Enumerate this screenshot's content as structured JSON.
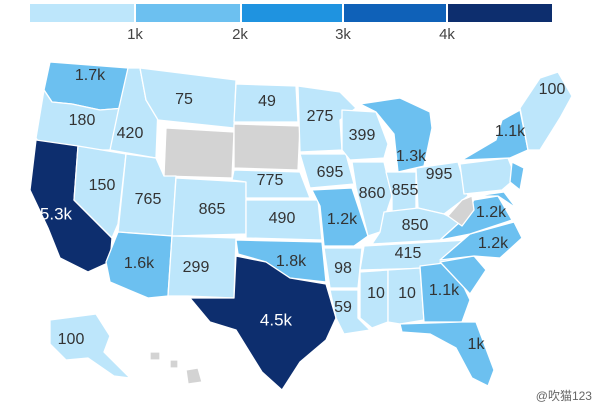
{
  "legend": {
    "ticks": [
      "1k",
      "2k",
      "3k",
      "4k"
    ],
    "colors": [
      "#bde6fb",
      "#6cc0f0",
      "#1f93e0",
      "#0f61b8",
      "#0d2e6e"
    ]
  },
  "no_data_color": "#d3d3d3",
  "states": [
    {
      "id": "WA",
      "label": "1.7k",
      "value": 1700
    },
    {
      "id": "OR",
      "label": "180",
      "value": 180
    },
    {
      "id": "CA",
      "label": "5.3k",
      "value": 5300
    },
    {
      "id": "ID",
      "label": "420",
      "value": 420
    },
    {
      "id": "NV",
      "label": "150",
      "value": 150
    },
    {
      "id": "MT",
      "label": "75",
      "value": 75
    },
    {
      "id": "WY",
      "label": "",
      "value": null
    },
    {
      "id": "UT",
      "label": "765",
      "value": 765
    },
    {
      "id": "AZ",
      "label": "1.6k",
      "value": 1600
    },
    {
      "id": "CO",
      "label": "865",
      "value": 865
    },
    {
      "id": "NM",
      "label": "299",
      "value": 299
    },
    {
      "id": "ND",
      "label": "49",
      "value": 49
    },
    {
      "id": "SD",
      "label": "",
      "value": null
    },
    {
      "id": "NE",
      "label": "775",
      "value": 775
    },
    {
      "id": "KS",
      "label": "490",
      "value": 490
    },
    {
      "id": "OK",
      "label": "1.8k",
      "value": 1800
    },
    {
      "id": "TX",
      "label": "4.5k",
      "value": 4500
    },
    {
      "id": "MN",
      "label": "275",
      "value": 275
    },
    {
      "id": "IA",
      "label": "695",
      "value": 695
    },
    {
      "id": "MO",
      "label": "1.2k",
      "value": 1200
    },
    {
      "id": "AR",
      "label": "98",
      "value": 98
    },
    {
      "id": "LA",
      "label": "59",
      "value": 59
    },
    {
      "id": "WI",
      "label": "399",
      "value": 399
    },
    {
      "id": "IL",
      "label": "860",
      "value": 860
    },
    {
      "id": "MI",
      "label": "1.3k",
      "value": 1300
    },
    {
      "id": "IN",
      "label": "855",
      "value": 855
    },
    {
      "id": "OH",
      "label": "995",
      "value": 995
    },
    {
      "id": "KY",
      "label": "850",
      "value": 850
    },
    {
      "id": "TN",
      "label": "415",
      "value": 415
    },
    {
      "id": "MS",
      "label": "10",
      "value": 10
    },
    {
      "id": "AL",
      "label": "10",
      "value": 10
    },
    {
      "id": "GA",
      "label": "1.1k",
      "value": 1100
    },
    {
      "id": "FL",
      "label": "1k",
      "value": 1000
    },
    {
      "id": "SC",
      "label": "",
      "value": 1000
    },
    {
      "id": "NC",
      "label": "1.2k",
      "value": 1200
    },
    {
      "id": "VA",
      "label": "1.2k",
      "value": 1200
    },
    {
      "id": "WV",
      "label": "",
      "value": null
    },
    {
      "id": "PA",
      "label": "",
      "value": 900
    },
    {
      "id": "NY",
      "label": "1.1k",
      "value": 1100
    },
    {
      "id": "MD",
      "label": "",
      "value": 1500
    },
    {
      "id": "NJ",
      "label": "",
      "value": 1300
    },
    {
      "id": "NE6",
      "label": "100",
      "value": 100
    },
    {
      "id": "AK",
      "label": "100",
      "value": 100
    },
    {
      "id": "HI",
      "label": "",
      "value": null
    }
  ],
  "watermark": "@吹猫123"
}
